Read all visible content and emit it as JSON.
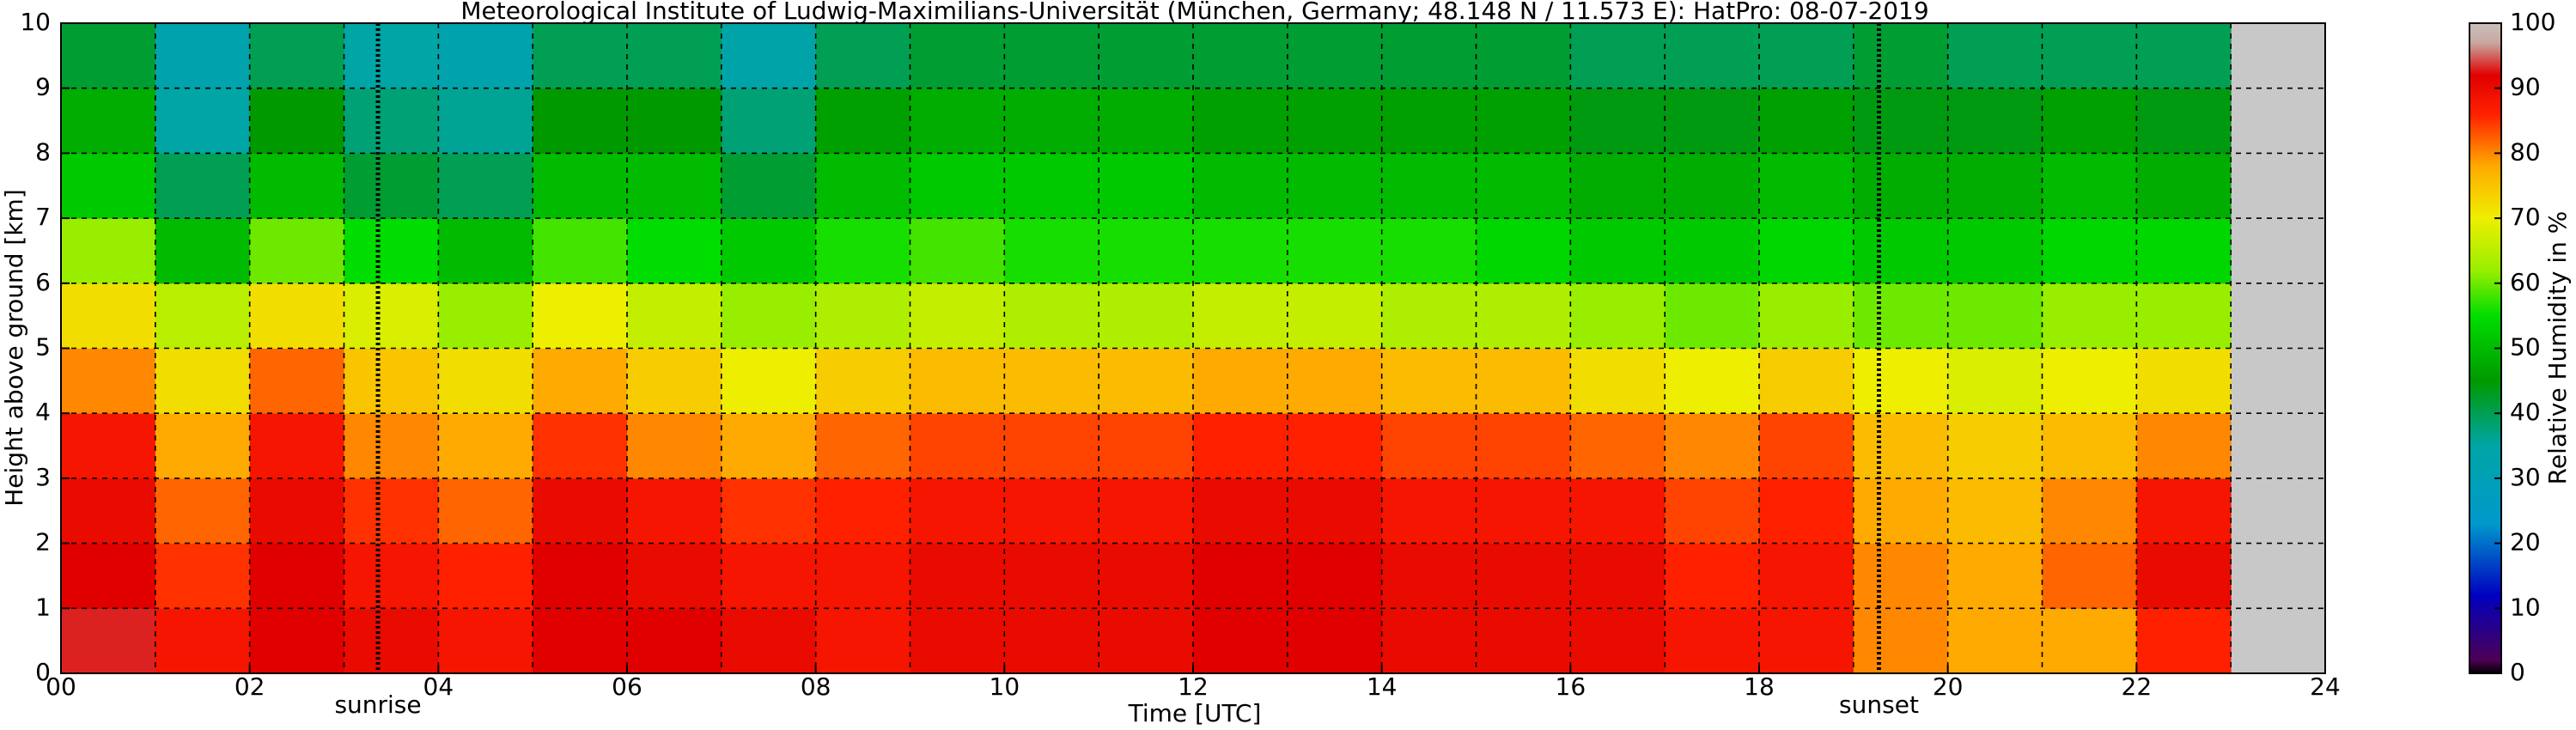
{
  "chart_data": {
    "type": "heatmap",
    "title": "Meteorological Institute of Ludwig-Maximilians-Universität (München, Germany; 48.148 N / 11.573 E):    HatPro: 08-07-2019",
    "x_label": "Time [UTC]",
    "y_label": "Height above ground [km]",
    "colorbar_label": "Relative Humidity in %",
    "xlim": [
      0,
      24
    ],
    "ylim": [
      0,
      10
    ],
    "xticks": [
      {
        "value": 0,
        "label": "00"
      },
      {
        "value": 2,
        "label": "02"
      },
      {
        "value": 4,
        "label": "04"
      },
      {
        "value": 6,
        "label": "06"
      },
      {
        "value": 8,
        "label": "08"
      },
      10,
      12,
      14,
      16,
      18,
      20,
      22,
      24
    ],
    "xminorticks": [
      1,
      3,
      5,
      7,
      9,
      11,
      13,
      15,
      17,
      19,
      21,
      23
    ],
    "yticks": [
      0,
      1,
      2,
      3,
      4,
      5,
      6,
      7,
      8,
      9,
      10
    ],
    "clim": [
      0,
      100
    ],
    "cticks": [
      0,
      10,
      20,
      30,
      40,
      50,
      60,
      70,
      80,
      90,
      100
    ],
    "colorscale": [
      {
        "value": 0,
        "color": "#000000"
      },
      {
        "value": 2,
        "color": "#4d0055"
      },
      {
        "value": 12,
        "color": "#0000c0"
      },
      {
        "value": 23,
        "color": "#0099cc"
      },
      {
        "value": 35,
        "color": "#00a5a5"
      },
      {
        "value": 45,
        "color": "#009900"
      },
      {
        "value": 55,
        "color": "#00dd00"
      },
      {
        "value": 62,
        "color": "#99ee00"
      },
      {
        "value": 70,
        "color": "#eeee00"
      },
      {
        "value": 78,
        "color": "#ffaa00"
      },
      {
        "value": 86,
        "color": "#ff2000"
      },
      {
        "value": 92,
        "color": "#e00000"
      },
      {
        "value": 97,
        "color": "#c8a8a0"
      },
      {
        "value": 100,
        "color": "#c8c0bc"
      }
    ],
    "grid": true,
    "xbins": [
      0,
      1,
      2,
      3,
      4,
      5,
      6,
      7,
      8,
      9,
      10,
      11,
      12,
      13,
      14,
      15,
      16,
      17,
      18,
      19,
      20,
      21,
      22,
      23
    ],
    "ybins": [
      0,
      1,
      2,
      3,
      4,
      5,
      6,
      7,
      8,
      9,
      10
    ],
    "values": [
      [
        93,
        92,
        90,
        88,
        80,
        72,
        62,
        52,
        48,
        42
      ],
      [
        88,
        85,
        82,
        78,
        72,
        65,
        50,
        40,
        35,
        33
      ],
      [
        92,
        92,
        90,
        88,
        82,
        72,
        60,
        50,
        45,
        40
      ],
      [
        90,
        88,
        85,
        80,
        75,
        68,
        55,
        42,
        38,
        35
      ],
      [
        88,
        86,
        82,
        78,
        72,
        62,
        50,
        40,
        36,
        33
      ],
      [
        92,
        92,
        90,
        85,
        78,
        70,
        58,
        50,
        45,
        40
      ],
      [
        92,
        90,
        88,
        80,
        74,
        66,
        55,
        50,
        45,
        40
      ],
      [
        90,
        88,
        85,
        78,
        70,
        62,
        52,
        42,
        38,
        34
      ],
      [
        88,
        88,
        86,
        82,
        74,
        64,
        56,
        50,
        46,
        40
      ],
      [
        90,
        90,
        88,
        84,
        76,
        66,
        58,
        52,
        48,
        42
      ],
      [
        90,
        90,
        88,
        84,
        76,
        64,
        56,
        52,
        48,
        42
      ],
      [
        90,
        90,
        88,
        84,
        76,
        64,
        56,
        52,
        48,
        42
      ],
      [
        92,
        92,
        90,
        86,
        78,
        66,
        56,
        50,
        46,
        42
      ],
      [
        92,
        92,
        90,
        86,
        78,
        66,
        56,
        50,
        46,
        42
      ],
      [
        90,
        90,
        88,
        84,
        76,
        64,
        56,
        50,
        46,
        42
      ],
      [
        90,
        90,
        88,
        84,
        76,
        64,
        54,
        50,
        46,
        42
      ],
      [
        90,
        90,
        88,
        82,
        72,
        62,
        52,
        48,
        44,
        40
      ],
      [
        88,
        86,
        84,
        80,
        70,
        60,
        52,
        48,
        44,
        40
      ],
      [
        88,
        88,
        86,
        84,
        74,
        62,
        54,
        50,
        46,
        40
      ],
      [
        80,
        80,
        78,
        76,
        70,
        60,
        52,
        48,
        44,
        42
      ],
      [
        78,
        78,
        76,
        74,
        68,
        60,
        52,
        48,
        44,
        40
      ],
      [
        78,
        82,
        80,
        76,
        70,
        62,
        54,
        50,
        46,
        40
      ],
      [
        86,
        90,
        88,
        80,
        72,
        62,
        54,
        48,
        44,
        40
      ]
    ],
    "annotations": [
      {
        "x": 3.36,
        "label": "sunrise"
      },
      {
        "x": 19.27,
        "label": "sunset"
      }
    ]
  }
}
